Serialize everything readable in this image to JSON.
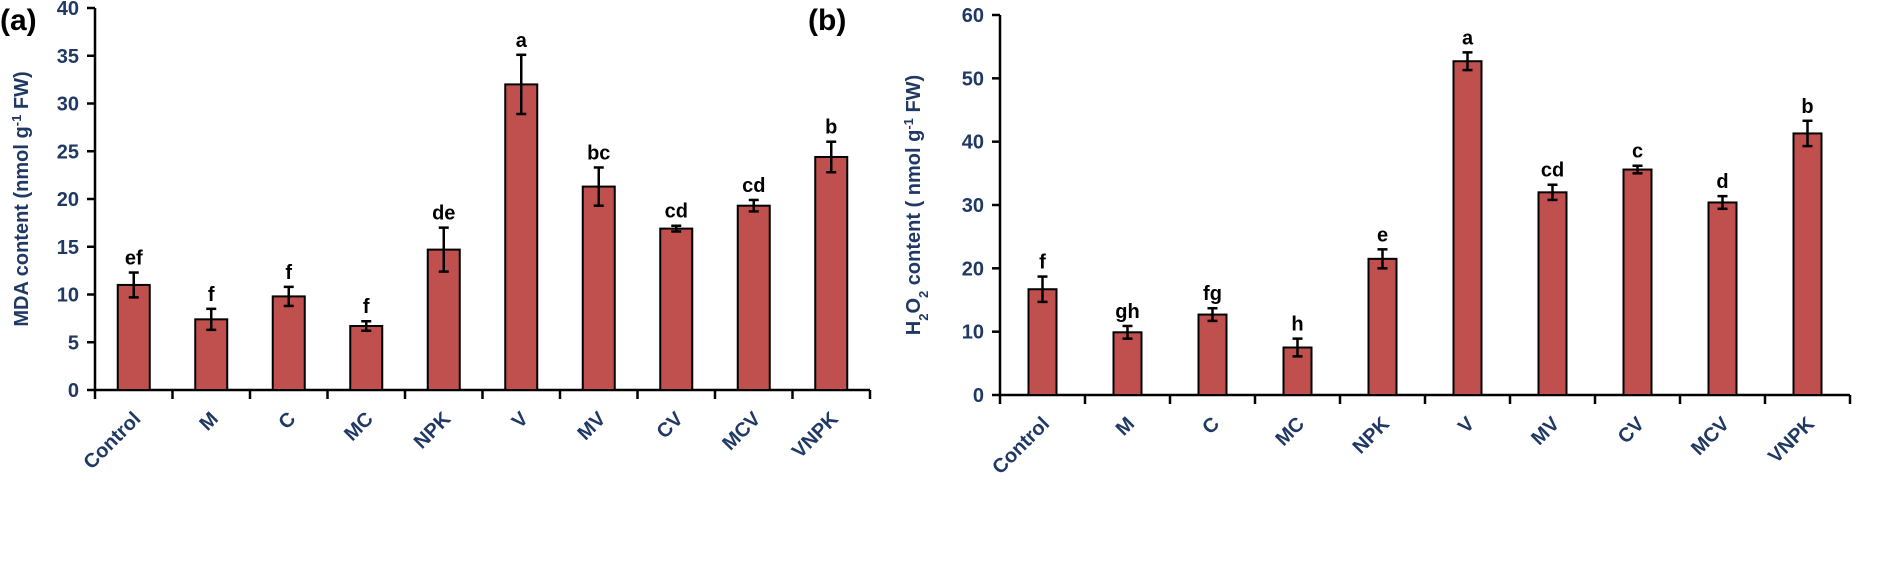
{
  "colors": {
    "bar": "#C0504D",
    "axis_text": "#1F3864",
    "bar_edge": "#000000"
  },
  "chart_data": [
    {
      "type": "bar",
      "panel_label": "(a)",
      "title": "",
      "xlabel": "",
      "ylabel": "MDA  content (nmol g-1 FW)",
      "ylabel_parts": {
        "before": "MDA  content (nmol g",
        "sup": "-1",
        "after": " FW)"
      },
      "ylim": [
        0,
        40
      ],
      "yticks": [
        0,
        5,
        10,
        15,
        20,
        25,
        30,
        35,
        40
      ],
      "categories": [
        "Control",
        "M",
        "C",
        "MC",
        "NPK",
        "V",
        "MV",
        "CV",
        "MCV",
        "VNPK"
      ],
      "values": [
        11.0,
        7.4,
        9.8,
        6.7,
        14.7,
        32.0,
        21.3,
        16.9,
        19.3,
        24.4
      ],
      "errors": [
        1.3,
        1.1,
        1.0,
        0.5,
        2.3,
        3.1,
        2.0,
        0.3,
        0.6,
        1.6
      ],
      "significance": [
        "ef",
        "f",
        "f",
        "f",
        "de",
        "a",
        "bc",
        "cd",
        "cd",
        "b"
      ],
      "grid": false
    },
    {
      "type": "bar",
      "panel_label": "(b)",
      "title": "",
      "xlabel": "",
      "ylabel": "H2O2 content ( nmol g-1 FW)",
      "ylabel_parts": {
        "h": "H",
        "sub1": "2",
        "o": "O",
        "sub2": "2",
        "mid": " content ( nmol g",
        "sup": "-1",
        "after": " FW)"
      },
      "ylim": [
        0,
        60
      ],
      "yticks": [
        0,
        10,
        20,
        30,
        40,
        50,
        60
      ],
      "categories": [
        "Control",
        "M",
        "C",
        "MC",
        "NPK",
        "V",
        "MV",
        "CV",
        "MCV",
        "VNPK"
      ],
      "values": [
        16.7,
        9.9,
        12.7,
        7.5,
        21.5,
        52.7,
        32.0,
        35.6,
        30.4,
        41.3
      ],
      "errors": [
        2.0,
        1.0,
        1.0,
        1.4,
        1.5,
        1.4,
        1.2,
        0.6,
        1.0,
        2.0
      ],
      "significance": [
        "f",
        "gh",
        "fg",
        "h",
        "e",
        "a",
        "cd",
        "c",
        "d",
        "b"
      ],
      "grid": false
    }
  ]
}
